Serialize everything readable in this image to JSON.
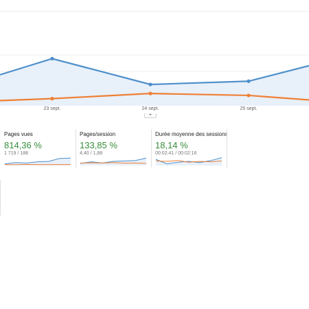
{
  "overview_chart": {
    "x_labels": [
      "23 sept.",
      "24 sept.",
      "25 sept."
    ],
    "series": [
      {
        "color": "#4d8fcb",
        "values": [
          0.48,
          0.73,
          0.33,
          0.38,
          0.62
        ]
      },
      {
        "color": "#ef7f33",
        "values": [
          0.08,
          0.11,
          0.19,
          0.16,
          0.09
        ]
      }
    ]
  },
  "metrics": [
    {
      "title": "Pages vues",
      "change": "814,36 %",
      "comparison": "1 719 / 188",
      "spark_current": [
        0.2,
        0.35,
        0.3,
        0.45,
        0.5,
        0.85,
        0.9
      ],
      "spark_previous": [
        0.1,
        0.1,
        0.12,
        0.1,
        0.1,
        0.11,
        0.1
      ]
    },
    {
      "title": "Pages/session",
      "change": "133,85 %",
      "comparison": "4,40 / 1,88",
      "spark_current": [
        0.25,
        0.45,
        0.3,
        0.5,
        0.55,
        0.6,
        0.9
      ],
      "spark_previous": [
        0.3,
        0.32,
        0.3,
        0.35,
        0.28,
        0.3,
        0.25
      ]
    },
    {
      "title": "Durée moyenne des sessions",
      "change": "18,14 %",
      "comparison": "00:02:41 / 00:02:16",
      "spark_current": [
        0.75,
        0.2,
        0.4,
        0.5,
        0.35,
        0.6,
        0.95
      ],
      "spark_previous": [
        0.55,
        0.5,
        0.6,
        0.4,
        0.5,
        0.45,
        0.55
      ]
    }
  ],
  "colors": {
    "current": "#4d8fcb",
    "previous": "#ef7f33",
    "positive": "#388e3c"
  }
}
